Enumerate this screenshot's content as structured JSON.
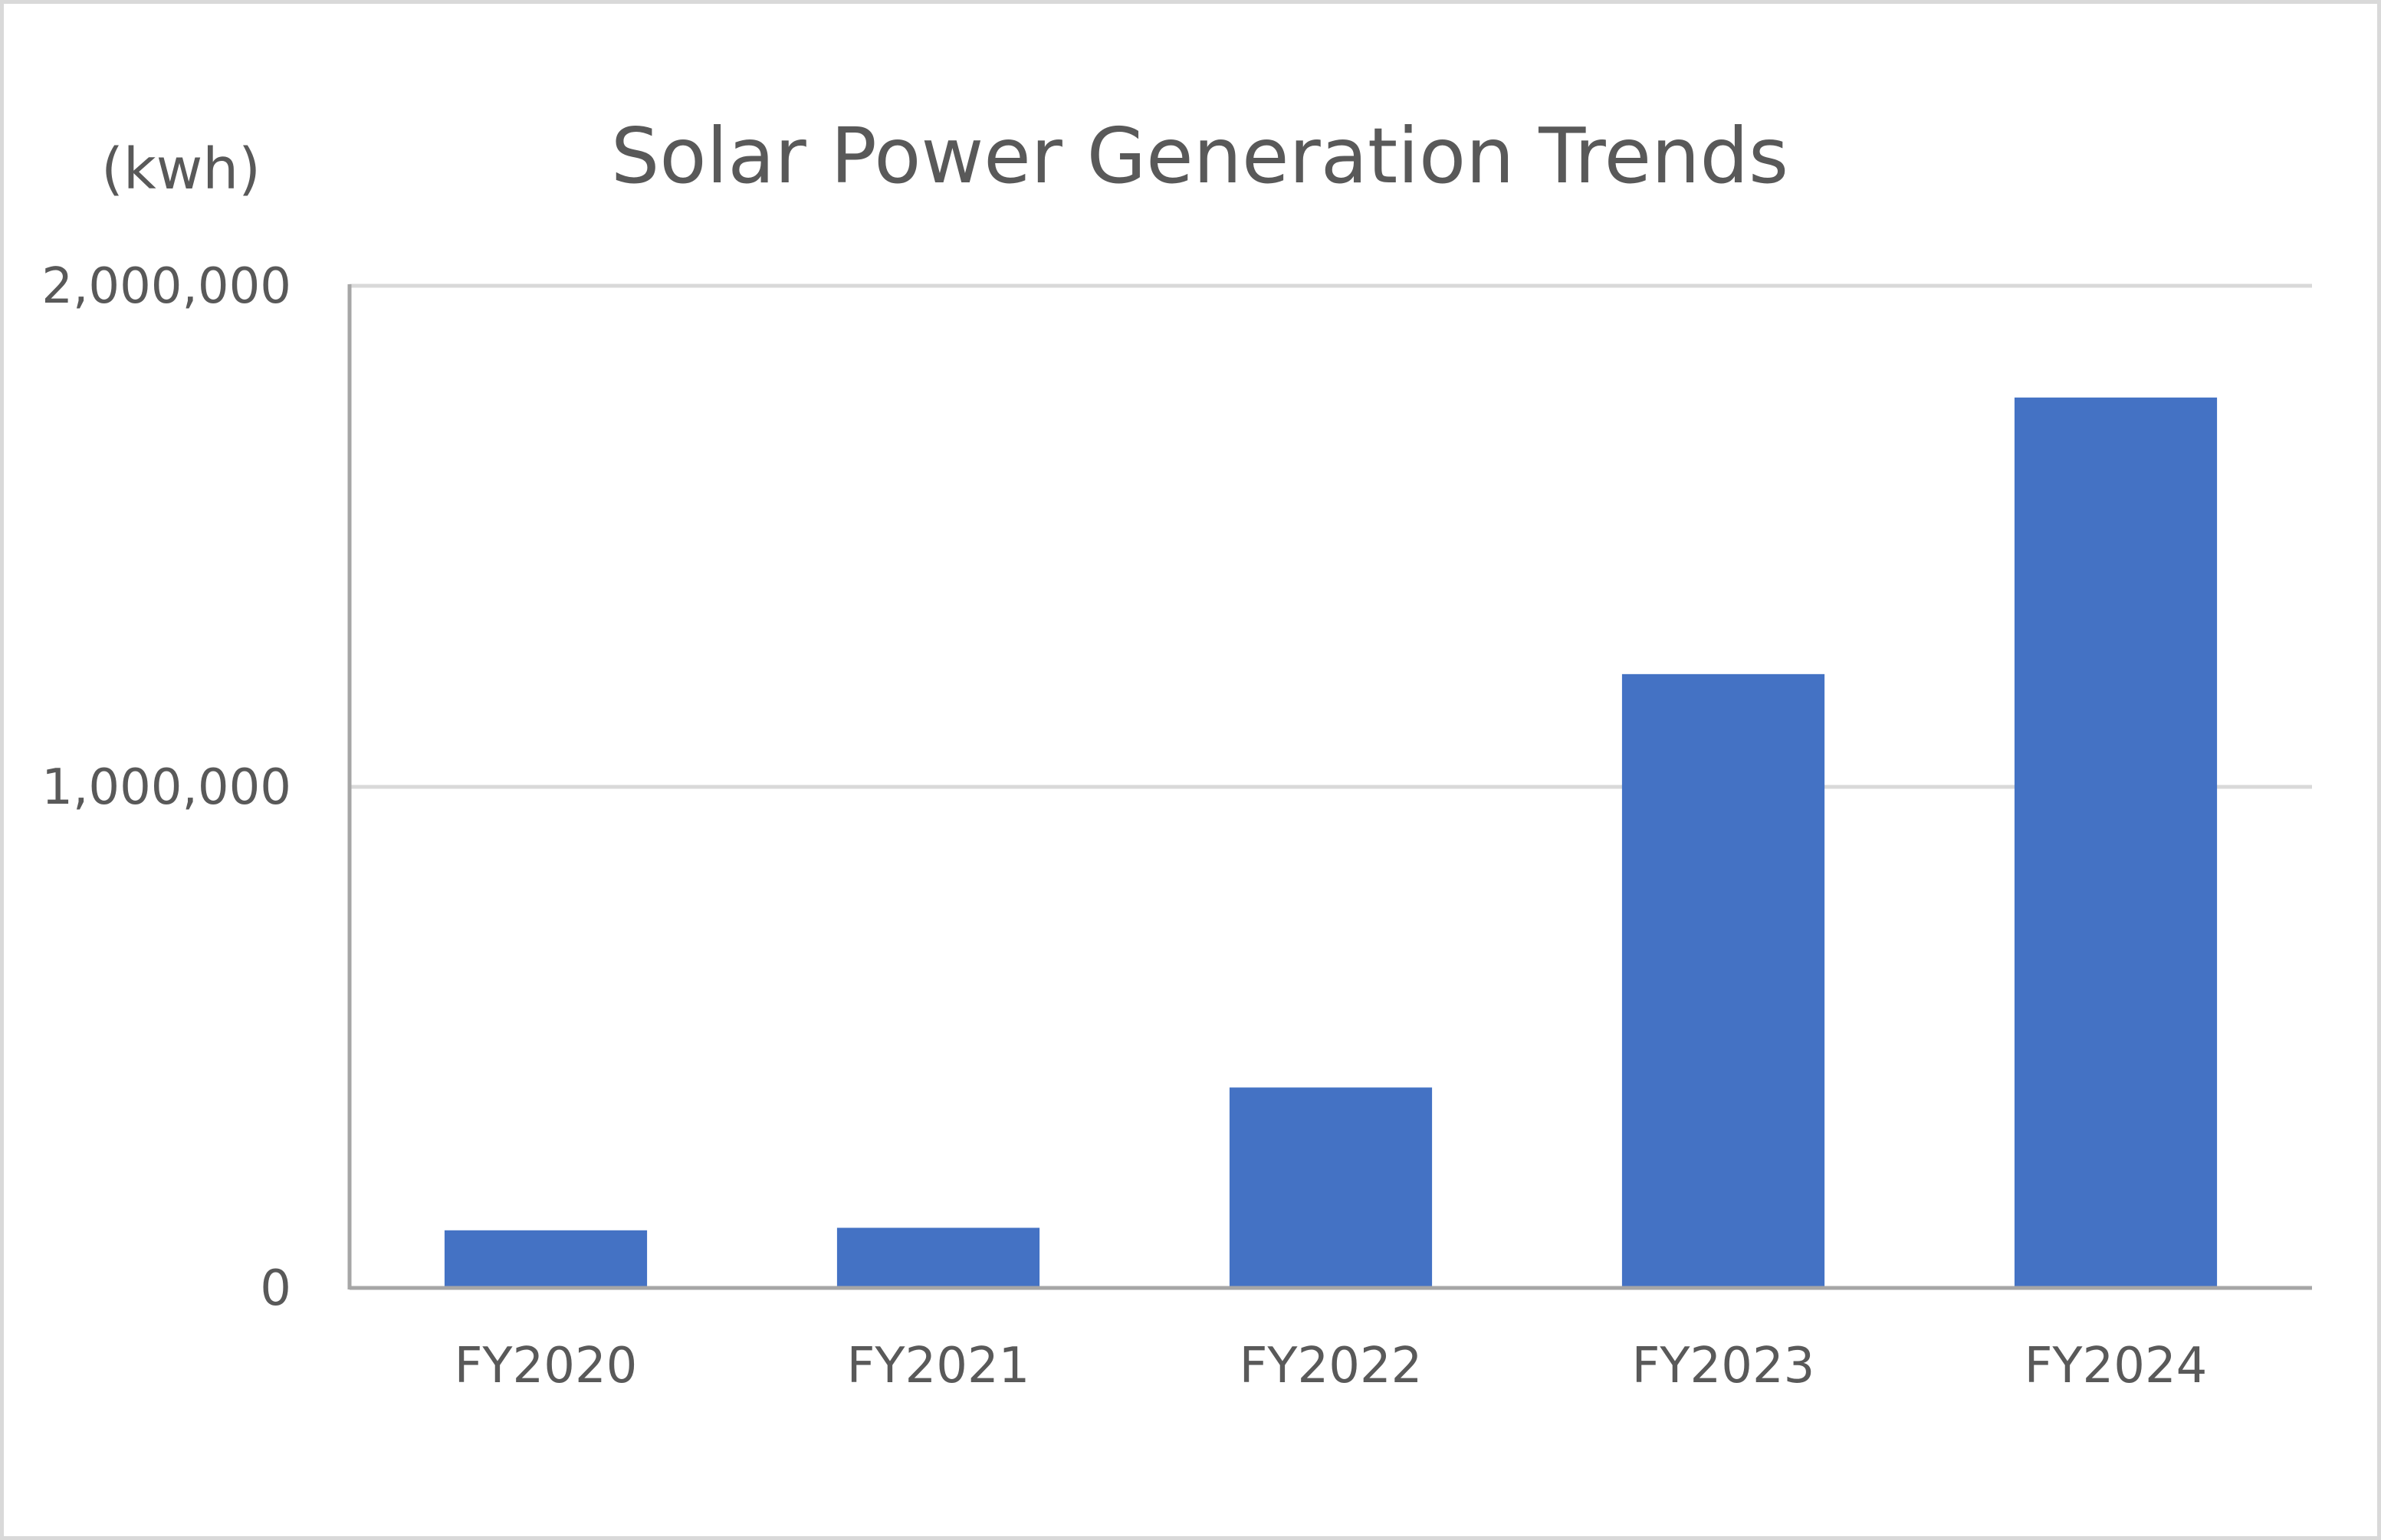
{
  "chart_data": {
    "type": "bar",
    "title": "Solar Power Generation Trends",
    "ylabel": "(kwh)",
    "xlabel": "",
    "categories": [
      "FY2020",
      "FY2021",
      "FY2022",
      "FY2023",
      "FY2024"
    ],
    "values": [
      115000,
      120000,
      400000,
      1225000,
      1777000
    ],
    "ylim": [
      0,
      2000000
    ],
    "yticks": [
      0,
      1000000,
      2000000
    ],
    "ytick_labels": [
      "0",
      "1,000,000",
      "2,000,000"
    ],
    "grid": true,
    "legend": "none",
    "bar_color": "#4472c4"
  }
}
